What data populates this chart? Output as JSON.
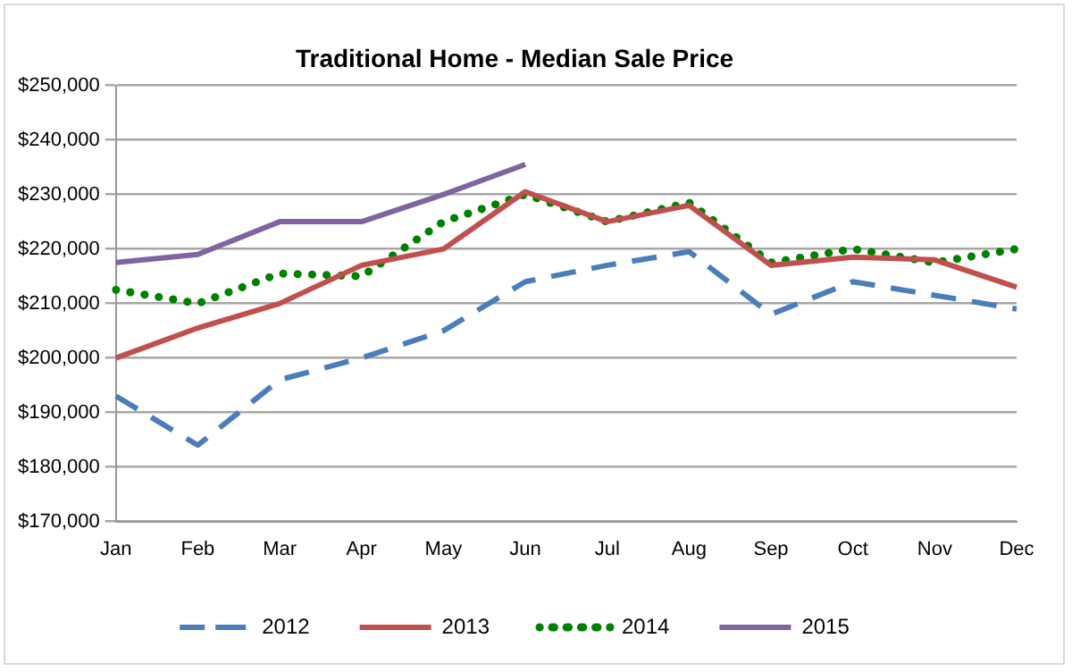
{
  "chart_data": {
    "type": "line",
    "title": "Traditional Home - Median Sale Price",
    "categories": [
      "Jan",
      "Feb",
      "Mar",
      "Apr",
      "May",
      "Jun",
      "Jul",
      "Aug",
      "Sep",
      "Oct",
      "Nov",
      "Dec"
    ],
    "series": [
      {
        "name": "2012",
        "color": "#4a7ebb",
        "line_style": "dashed",
        "values": [
          193000,
          184000,
          196000,
          200000,
          205000,
          214000,
          217000,
          219500,
          208000,
          214000,
          211500,
          209000
        ]
      },
      {
        "name": "2013",
        "color": "#c0504d",
        "line_style": "solid",
        "values": [
          200000,
          205500,
          210000,
          217000,
          220000,
          230500,
          225000,
          228000,
          217000,
          218500,
          218000,
          213000
        ]
      },
      {
        "name": "2014",
        "color": "#008000",
        "line_style": "dotted",
        "values": [
          212500,
          210000,
          215500,
          215000,
          225000,
          230000,
          225000,
          228500,
          217500,
          220000,
          217500,
          220000
        ]
      },
      {
        "name": "2015",
        "color": "#8064a2",
        "line_style": "solid",
        "values": [
          217500,
          219000,
          225000,
          225000,
          230000,
          235500,
          null,
          null,
          null,
          null,
          null,
          null
        ]
      }
    ],
    "ylim": [
      170000,
      250000
    ],
    "yticks": [
      {
        "value": 170000,
        "label": "$170,000"
      },
      {
        "value": 180000,
        "label": "$180,000"
      },
      {
        "value": 190000,
        "label": "$190,000"
      },
      {
        "value": 200000,
        "label": "$200,000"
      },
      {
        "value": 210000,
        "label": "$210,000"
      },
      {
        "value": 220000,
        "label": "$220,000"
      },
      {
        "value": 230000,
        "label": "$230,000"
      },
      {
        "value": 240000,
        "label": "$240,000"
      },
      {
        "value": 250000,
        "label": "$250,000"
      }
    ],
    "grid": "y",
    "legend": "bottom",
    "marker": "none"
  }
}
